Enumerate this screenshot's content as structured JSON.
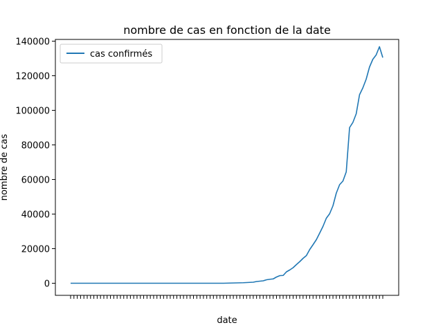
{
  "chart_data": {
    "type": "line",
    "title": "nombre de cas en fonction de la date",
    "xlabel": "date",
    "ylabel": "nombre de cas",
    "ylim": [
      -7000,
      141000
    ],
    "yticks": [
      0,
      20000,
      40000,
      60000,
      80000,
      100000,
      120000,
      140000
    ],
    "grid": false,
    "legend_position": "top-left",
    "x_tick_labels_note": "one tick per date; labels overlap and are illegible in the original",
    "series": [
      {
        "name": "cas confirmés",
        "color": "#1f77b4",
        "values": [
          0,
          0,
          0,
          0,
          0,
          0,
          0,
          0,
          0,
          0,
          0,
          0,
          0,
          0,
          0,
          0,
          0,
          0,
          0,
          0,
          0,
          0,
          0,
          0,
          0,
          0,
          0,
          0,
          0,
          0,
          0,
          0,
          0,
          0,
          0,
          0,
          0,
          0,
          0,
          0,
          0,
          0,
          0,
          0,
          0,
          0,
          0,
          50,
          100,
          150,
          200,
          250,
          300,
          400,
          500,
          600,
          1000,
          1200,
          1400,
          2000,
          2300,
          2500,
          3600,
          4400,
          4500,
          6600,
          7700,
          9000,
          10800,
          12500,
          14400,
          16000,
          19500,
          22300,
          25200,
          29000,
          32900,
          37600,
          40200,
          44800,
          52100,
          57000,
          59100,
          64400,
          90000,
          93000,
          98000,
          109000,
          113000,
          118000,
          125000,
          129500,
          132000,
          136800,
          130500
        ]
      }
    ]
  }
}
